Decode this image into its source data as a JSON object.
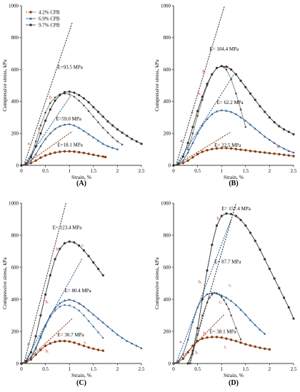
{
  "chart_data": [
    {
      "type": "line",
      "panel": "(A)",
      "xlabel": "Strain, %",
      "ylabel": "Compressive stress, kPa",
      "xlim": [
        0,
        2.5
      ],
      "ylim": [
        0,
        1000
      ],
      "xticks": [
        "0",
        "0.5",
        "1",
        "1.5",
        "2",
        "2.5"
      ],
      "yticks": [
        "0",
        "200",
        "400",
        "600",
        "800",
        "1000"
      ],
      "legend": [
        "4.2% CPB",
        "6.9% CPB",
        "9.7% CPB"
      ],
      "legend_position": "top-left",
      "colors": {
        "low": "#8b3a0f",
        "mid": "#2e5f8f",
        "high": "#333333"
      },
      "series": [
        {
          "name": "4.2% CPB",
          "x": [
            0.0,
            0.1,
            0.2,
            0.3,
            0.4,
            0.5,
            0.6,
            0.7,
            0.8,
            0.9,
            1.0,
            1.1,
            1.2,
            1.3,
            1.4,
            1.5,
            1.6,
            1.7,
            1.75
          ],
          "y": [
            0,
            5,
            15,
            30,
            48,
            62,
            72,
            80,
            85,
            88,
            88,
            86,
            82,
            78,
            72,
            66,
            60,
            55,
            52
          ]
        },
        {
          "name": "6.9% CPB",
          "x": [
            0.0,
            0.1,
            0.2,
            0.3,
            0.4,
            0.5,
            0.6,
            0.7,
            0.8,
            0.9,
            1.0,
            1.1,
            1.2,
            1.3,
            1.4,
            1.5,
            1.6,
            1.7,
            1.8,
            1.9,
            2.0
          ],
          "y": [
            0,
            8,
            30,
            70,
            120,
            165,
            200,
            228,
            245,
            255,
            258,
            250,
            235,
            215,
            195,
            175,
            155,
            135,
            120,
            110,
            100
          ]
        },
        {
          "name": "9.7% CPB",
          "x": [
            0.0,
            0.1,
            0.2,
            0.3,
            0.4,
            0.5,
            0.6,
            0.7,
            0.8,
            0.9,
            1.0,
            1.1,
            1.2,
            1.3,
            1.4,
            1.5,
            1.6,
            1.7,
            1.8,
            1.9,
            2.0,
            2.1,
            2.2,
            2.3,
            2.4,
            2.5
          ],
          "y": [
            0,
            10,
            50,
            120,
            200,
            280,
            350,
            405,
            440,
            458,
            462,
            455,
            440,
            420,
            395,
            365,
            335,
            305,
            275,
            250,
            225,
            205,
            185,
            165,
            150,
            135
          ]
        }
      ],
      "moduli": [
        {
          "label": "E=93.5 MPa",
          "x": 0.75,
          "y": 605
        },
        {
          "label": "E=59.0 MPa",
          "x": 0.72,
          "y": 282
        },
        {
          "label": "E=18.1 MPa",
          "x": 0.75,
          "y": 118
        }
      ],
      "secondary_line": {
        "name": "9.7% CPB",
        "x": [
          0.1,
          0.2,
          0.3,
          0.4,
          0.5,
          0.6,
          0.7,
          0.8,
          0.9,
          1.0,
          1.1,
          1.2,
          1.3,
          1.4,
          1.5,
          1.6,
          1.7,
          1.8,
          1.9,
          2.0,
          2.1
        ],
        "y": [
          10,
          60,
          150,
          250,
          330,
          390,
          425,
          445,
          450,
          445,
          430,
          405,
          375,
          340,
          305,
          270,
          235,
          205,
          175,
          150,
          130
        ]
      },
      "annotations": [
        {
          "text": "a.",
          "x": 0.13,
          "y": 130
        },
        {
          "text": "b.",
          "x": 0.58,
          "y": 418
        },
        {
          "text": "c.",
          "x": 0.98,
          "y": 455
        },
        {
          "text": "a.",
          "x": 0.34,
          "y": 225
        }
      ]
    },
    {
      "type": "line",
      "panel": "(B)",
      "xlabel": "Strain, %",
      "ylabel": "Compressive stress, kPa",
      "xlim": [
        0,
        2.5
      ],
      "ylim": [
        0,
        1000
      ],
      "xticks": [
        "0",
        "0.5",
        "1",
        "1.5",
        "2",
        "2.5"
      ],
      "yticks": [
        "0",
        "200",
        "400",
        "600",
        "800",
        "1000"
      ],
      "series": [
        {
          "name": "4.2% CPB",
          "x": [
            0.0,
            0.1,
            0.2,
            0.3,
            0.4,
            0.5,
            0.6,
            0.7,
            0.8,
            0.9,
            1.0,
            1.1,
            1.2,
            1.3,
            1.4,
            1.5,
            1.6,
            1.7,
            1.8,
            1.9,
            2.0,
            2.1,
            2.2,
            2.3,
            2.4,
            2.5
          ],
          "y": [
            0,
            5,
            15,
            30,
            50,
            70,
            85,
            95,
            102,
            106,
            108,
            108,
            106,
            102,
            98,
            95,
            90,
            87,
            83,
            80,
            76,
            73,
            70,
            66,
            62,
            58
          ]
        },
        {
          "name": "6.9% CPB",
          "x": [
            0.0,
            0.1,
            0.2,
            0.3,
            0.4,
            0.5,
            0.6,
            0.7,
            0.8,
            0.9,
            1.0,
            1.1,
            1.2,
            1.3,
            1.4,
            1.5,
            1.6,
            1.7,
            1.8,
            1.9,
            2.0,
            2.1,
            2.2,
            2.3,
            2.4,
            2.5
          ],
          "y": [
            0,
            8,
            30,
            80,
            140,
            200,
            250,
            290,
            320,
            338,
            345,
            342,
            335,
            320,
            300,
            280,
            255,
            230,
            205,
            180,
            160,
            140,
            120,
            105,
            90,
            80
          ]
        },
        {
          "name": "9.7% CPB",
          "x": [
            0.0,
            0.1,
            0.2,
            0.3,
            0.4,
            0.5,
            0.6,
            0.7,
            0.8,
            0.9,
            1.0,
            1.1,
            1.2,
            1.3,
            1.4,
            1.5,
            1.6,
            1.7,
            1.8,
            1.9,
            2.0,
            2.1,
            2.2,
            2.3,
            2.4,
            2.5
          ],
          "y": [
            0,
            10,
            55,
            140,
            240,
            340,
            430,
            510,
            570,
            610,
            622,
            618,
            600,
            570,
            530,
            490,
            450,
            410,
            370,
            335,
            300,
            270,
            245,
            225,
            210,
            195
          ]
        }
      ],
      "moduli": [
        {
          "label": "E= 104.4 MPa",
          "x": 0.75,
          "y": 718
        },
        {
          "label": "E= 62.2 MPa",
          "x": 0.9,
          "y": 385
        },
        {
          "label": "E= 22.5 MPa",
          "x": 0.85,
          "y": 115
        }
      ],
      "secondary_line": {
        "name": "9.7% CPB",
        "x": [
          0.3,
          0.4,
          0.5,
          0.6,
          0.7,
          0.8,
          0.9,
          1.0,
          1.05,
          1.1,
          1.2,
          1.3,
          1.4,
          1.5
        ],
        "y": [
          100,
          200,
          310,
          410,
          500,
          570,
          610,
          620,
          615,
          600,
          540,
          450,
          350,
          240
        ]
      },
      "annotations": [
        {
          "text": "a.",
          "x": 0.14,
          "y": 148
        },
        {
          "text": "b.",
          "x": 0.5,
          "y": 442
        },
        {
          "text": "c.",
          "x": 1.12,
          "y": 610
        },
        {
          "text": "a.",
          "x": 0.36,
          "y": 325
        },
        {
          "text": "b.",
          "x": 0.6,
          "y": 580
        },
        {
          "text": "c.",
          "x": 2.15,
          "y": 110
        }
      ]
    },
    {
      "type": "line",
      "panel": "(C)",
      "xlabel": "Strain, %",
      "ylabel": "Compressive stress, kPa",
      "xlim": [
        0,
        2.5
      ],
      "ylim": [
        0,
        1000
      ],
      "xticks": [
        "0",
        "0.5",
        "1",
        "1.5",
        "2",
        "2.5"
      ],
      "yticks": [
        "0",
        "200",
        "400",
        "600",
        "800",
        "1000"
      ],
      "series": [
        {
          "name": "4.2% CPB",
          "x": [
            0.0,
            0.1,
            0.2,
            0.3,
            0.4,
            0.5,
            0.6,
            0.7,
            0.8,
            0.9,
            1.0,
            1.1,
            1.2,
            1.3,
            1.4,
            1.5,
            1.6,
            1.7
          ],
          "y": [
            0,
            8,
            25,
            55,
            85,
            110,
            125,
            135,
            140,
            140,
            137,
            130,
            120,
            110,
            100,
            92,
            85,
            80
          ]
        },
        {
          "name": "6.9% CPB",
          "x": [
            0.0,
            0.1,
            0.2,
            0.3,
            0.4,
            0.5,
            0.6,
            0.7,
            0.8,
            0.9,
            1.0,
            1.1,
            1.2,
            1.3,
            1.4,
            1.5,
            1.6,
            1.7,
            1.8,
            1.9,
            2.0,
            2.1,
            2.2,
            2.3,
            2.4,
            2.5
          ],
          "y": [
            0,
            10,
            40,
            100,
            170,
            240,
            300,
            345,
            375,
            392,
            398,
            390,
            375,
            355,
            330,
            305,
            280,
            255,
            230,
            205,
            180,
            160,
            140,
            125,
            110,
            95
          ]
        },
        {
          "name": "9.7% CPB",
          "x": [
            0.0,
            0.1,
            0.2,
            0.3,
            0.4,
            0.5,
            0.6,
            0.7,
            0.8,
            0.9,
            1.0,
            1.1,
            1.2,
            1.3,
            1.4,
            1.5,
            1.6,
            1.7
          ],
          "y": [
            0,
            15,
            70,
            170,
            300,
            430,
            550,
            650,
            715,
            750,
            760,
            755,
            735,
            705,
            670,
            630,
            590,
            550
          ]
        }
      ],
      "moduli": [
        {
          "label": "E= 123.4 MPa",
          "x": 0.65,
          "y": 838
        },
        {
          "label": "E= 80.4 MPa",
          "x": 0.9,
          "y": 445
        },
        {
          "label": "E= 30.7 MPa",
          "x": 0.75,
          "y": 168
        }
      ],
      "secondary_line": {
        "name": "6.9% CPB",
        "x": [
          0.2,
          0.3,
          0.4,
          0.5,
          0.6,
          0.7,
          0.8,
          0.9,
          1.0,
          1.1,
          1.2,
          1.3,
          1.4,
          1.5,
          1.6,
          1.7
        ],
        "y": [
          30,
          90,
          160,
          230,
          290,
          330,
          355,
          365,
          362,
          350,
          330,
          300,
          265,
          230,
          195,
          160
        ]
      },
      "annotations": [
        {
          "text": "b.",
          "x": 0.72,
          "y": 705
        },
        {
          "text": "c.",
          "x": 1.25,
          "y": 730
        },
        {
          "text": "b.",
          "x": 0.5,
          "y": 375
        },
        {
          "text": "c.",
          "x": 1.2,
          "y": 365
        },
        {
          "text": "a.",
          "x": 0.12,
          "y": 115
        },
        {
          "text": "b.",
          "x": 0.5,
          "y": 68
        },
        {
          "text": "c.",
          "x": 1.3,
          "y": 125
        }
      ]
    },
    {
      "type": "line",
      "panel": "(D)",
      "xlabel": "Strain, %",
      "ylabel": "Compressive stress, kPa",
      "xlim": [
        0,
        2.5
      ],
      "ylim": [
        0,
        1000
      ],
      "xticks": [
        "0",
        "0.5",
        "1",
        "1.5",
        "2",
        "2.5"
      ],
      "yticks": [
        "0",
        "200",
        "400",
        "600",
        "800",
        "1000"
      ],
      "series": [
        {
          "name": "4.2% CPB",
          "x": [
            0.0,
            0.1,
            0.2,
            0.3,
            0.4,
            0.5,
            0.6,
            0.7,
            0.8,
            0.9,
            1.0,
            1.1,
            1.2,
            1.3,
            1.4,
            1.5,
            1.6,
            1.7,
            1.8,
            1.9,
            2.0
          ],
          "y": [
            0,
            10,
            30,
            70,
            110,
            140,
            155,
            162,
            165,
            165,
            162,
            155,
            148,
            140,
            130,
            120,
            112,
            105,
            98,
            92,
            88
          ]
        },
        {
          "name": "6.9% CPB",
          "x": [
            0.0,
            0.1,
            0.2,
            0.3,
            0.4,
            0.5,
            0.6,
            0.7,
            0.8,
            0.9,
            1.0,
            1.1,
            1.2,
            1.3,
            1.4,
            1.5,
            1.6,
            1.7,
            1.8,
            1.9
          ],
          "y": [
            0,
            15,
            60,
            150,
            260,
            350,
            405,
            432,
            440,
            436,
            425,
            410,
            390,
            365,
            335,
            305,
            270,
            240,
            210,
            185
          ]
        },
        {
          "name": "9.7% CPB",
          "x": [
            0.3,
            0.4,
            0.5,
            0.6,
            0.7,
            0.8,
            0.9,
            1.0,
            1.1,
            1.2,
            1.3,
            1.4,
            1.5,
            1.6,
            1.7,
            1.8,
            1.9,
            2.0,
            2.1,
            2.2,
            2.3,
            2.4,
            2.5
          ],
          "y": [
            0,
            80,
            220,
            400,
            580,
            740,
            860,
            920,
            935,
            932,
            920,
            895,
            860,
            815,
            765,
            710,
            650,
            590,
            530,
            470,
            410,
            350,
            280
          ]
        }
      ],
      "moduli": [
        {
          "label": "E= 157.4 MPa",
          "x": 1.0,
          "y": 955
        },
        {
          "label": "E= 87.7 MPa",
          "x": 0.85,
          "y": 625
        },
        {
          "label": "E= 38.1 MPa",
          "x": 0.75,
          "y": 188
        }
      ],
      "secondary_line": {
        "name": "9.7% CPB",
        "x": [
          0.35,
          0.4,
          0.5,
          0.6,
          0.7,
          0.75,
          0.8,
          0.85,
          0.9,
          0.95,
          1.0,
          1.05,
          1.1,
          1.15,
          1.2,
          1.3,
          1.4
        ],
        "y": [
          0,
          60,
          180,
          300,
          380,
          410,
          430,
          440,
          438,
          430,
          415,
          395,
          370,
          340,
          300,
          220,
          150
        ]
      },
      "annotations": [
        {
          "text": "c.",
          "x": 1.32,
          "y": 905
        },
        {
          "text": "b.",
          "x": 0.9,
          "y": 895
        },
        {
          "text": "c.",
          "x": 0.95,
          "y": 375
        },
        {
          "text": "c.",
          "x": 1.15,
          "y": 480
        },
        {
          "text": "b.",
          "x": 0.52,
          "y": 500
        },
        {
          "text": "a.",
          "x": 0.12,
          "y": 130
        },
        {
          "text": "b.",
          "x": 0.45,
          "y": 60
        },
        {
          "text": "b.",
          "x": 0.62,
          "y": 180
        },
        {
          "text": "c.",
          "x": 1.05,
          "y": 95
        }
      ]
    }
  ]
}
